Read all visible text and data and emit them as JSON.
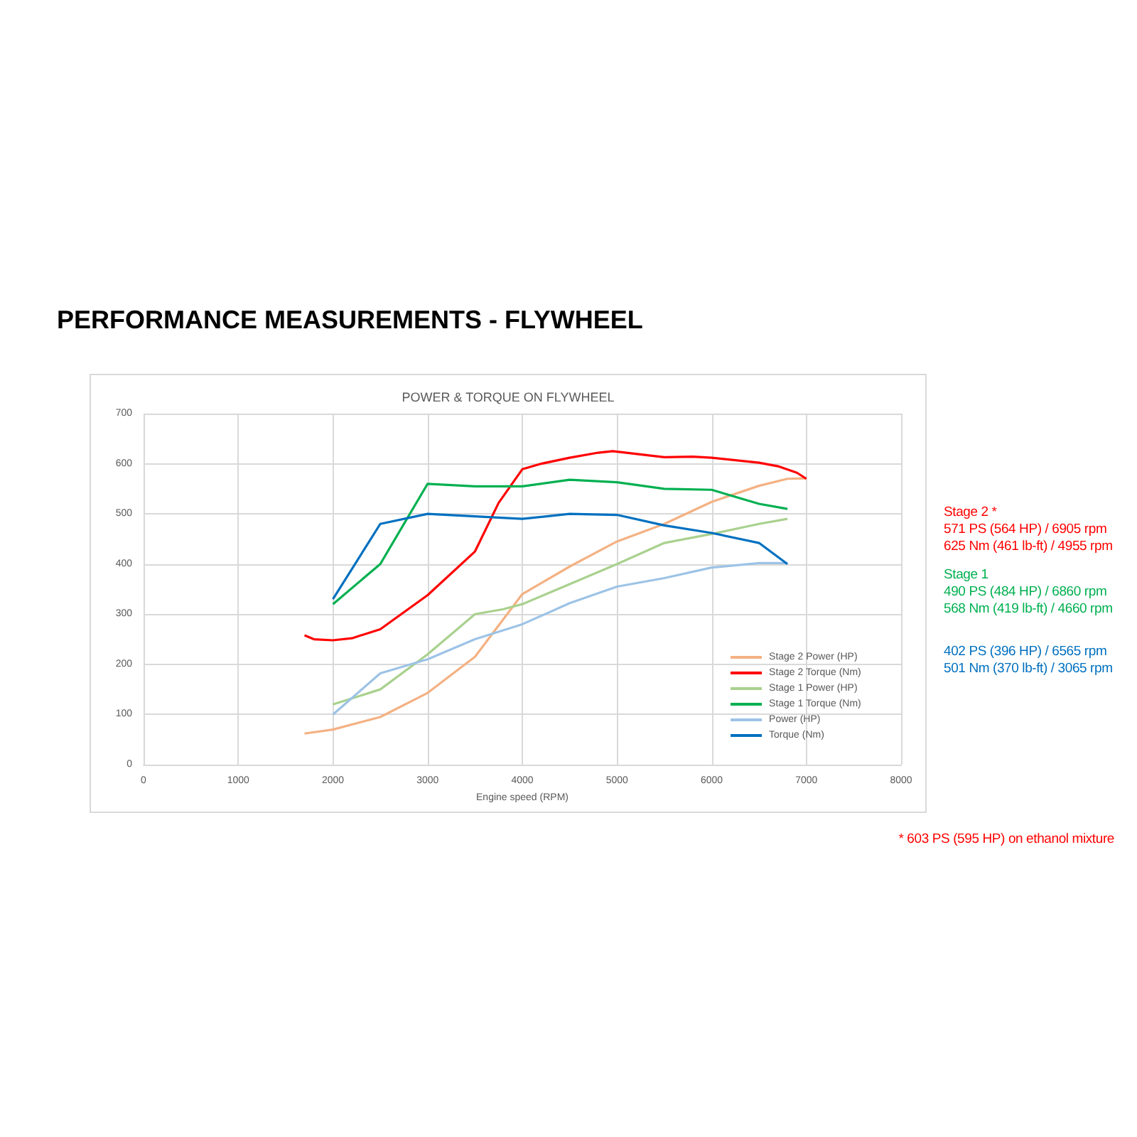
{
  "chart_data": {
    "type": "line",
    "title": "PERFORMANCE MEASUREMENTS - FLYWHEEL",
    "subtitle": "POWER & TORQUE ON FLYWHEEL",
    "xlabel": "Engine speed (RPM)",
    "xlim": [
      0,
      8000
    ],
    "xticks": [
      0,
      1000,
      2000,
      3000,
      4000,
      5000,
      6000,
      7000,
      8000
    ],
    "ylim": [
      0,
      700
    ],
    "yticks": [
      0,
      100,
      200,
      300,
      400,
      500,
      600,
      700
    ],
    "grid": true,
    "legend": "bottom right",
    "marker": "none",
    "line_style": "solid",
    "series": [
      {
        "name": "Stage 2 Power (HP)",
        "color": "#f4b183",
        "x": [
          1700,
          2000,
          2500,
          3000,
          3500,
          4000,
          4500,
          5000,
          5500,
          6000,
          6500,
          6800,
          7000
        ],
        "values": [
          62,
          70,
          95,
          143,
          215,
          340,
          395,
          445,
          480,
          524,
          556,
          570,
          571
        ]
      },
      {
        "name": "Stage 2 Torque (Nm)",
        "color": "#ff0000",
        "x": [
          1700,
          1800,
          2000,
          2200,
          2500,
          3000,
          3500,
          3750,
          4000,
          4200,
          4500,
          4800,
          4955,
          5500,
          5800,
          6000,
          6500,
          6700,
          6900,
          7000
        ],
        "values": [
          258,
          250,
          248,
          252,
          270,
          338,
          425,
          522,
          589,
          600,
          612,
          622,
          625,
          613,
          614,
          612,
          602,
          595,
          582,
          570
        ]
      },
      {
        "name": "Stage 1 Power (HP)",
        "color": "#a9d18e",
        "x": [
          2000,
          2500,
          3000,
          3500,
          3800,
          4000,
          4500,
          5000,
          5500,
          6000,
          6500,
          6800
        ],
        "values": [
          120,
          150,
          220,
          300,
          310,
          320,
          360,
          400,
          442,
          460,
          480,
          490
        ]
      },
      {
        "name": "Stage 1 Torque (Nm)",
        "color": "#00b050",
        "x": [
          2000,
          2500,
          3000,
          3500,
          4000,
          4500,
          5000,
          5500,
          6000,
          6500,
          6800
        ],
        "values": [
          320,
          400,
          560,
          555,
          555,
          568,
          563,
          550,
          548,
          520,
          510
        ]
      },
      {
        "name": "Power (HP)",
        "color": "#9dc3e6",
        "x": [
          2000,
          2500,
          3000,
          3500,
          4000,
          4500,
          5000,
          5500,
          6000,
          6500,
          6800
        ],
        "values": [
          100,
          182,
          210,
          250,
          280,
          322,
          355,
          372,
          393,
          402,
          402
        ]
      },
      {
        "name": "Torque (Nm)",
        "color": "#0070c0",
        "x": [
          2000,
          2500,
          3000,
          3500,
          4000,
          4500,
          5000,
          5500,
          6000,
          6500,
          6800
        ],
        "values": [
          330,
          480,
          500,
          495,
          490,
          500,
          498,
          477,
          462,
          442,
          400
        ]
      }
    ],
    "annotations": [
      "Stage 2 *",
      "571 PS (564 HP)  / 6905 rpm",
      "625 Nm (461 lb-ft) / 4955 rpm",
      "Stage 1",
      "490 PS (484 HP)  / 6860 rpm",
      "568 Nm (419 lb-ft) / 4660 rpm",
      "402 PS (396 HP) / 6565 rpm",
      "501 Nm (370 lb-ft) / 3065 rpm",
      "* 603 PS (595 HP) on ethanol mixture"
    ]
  }
}
